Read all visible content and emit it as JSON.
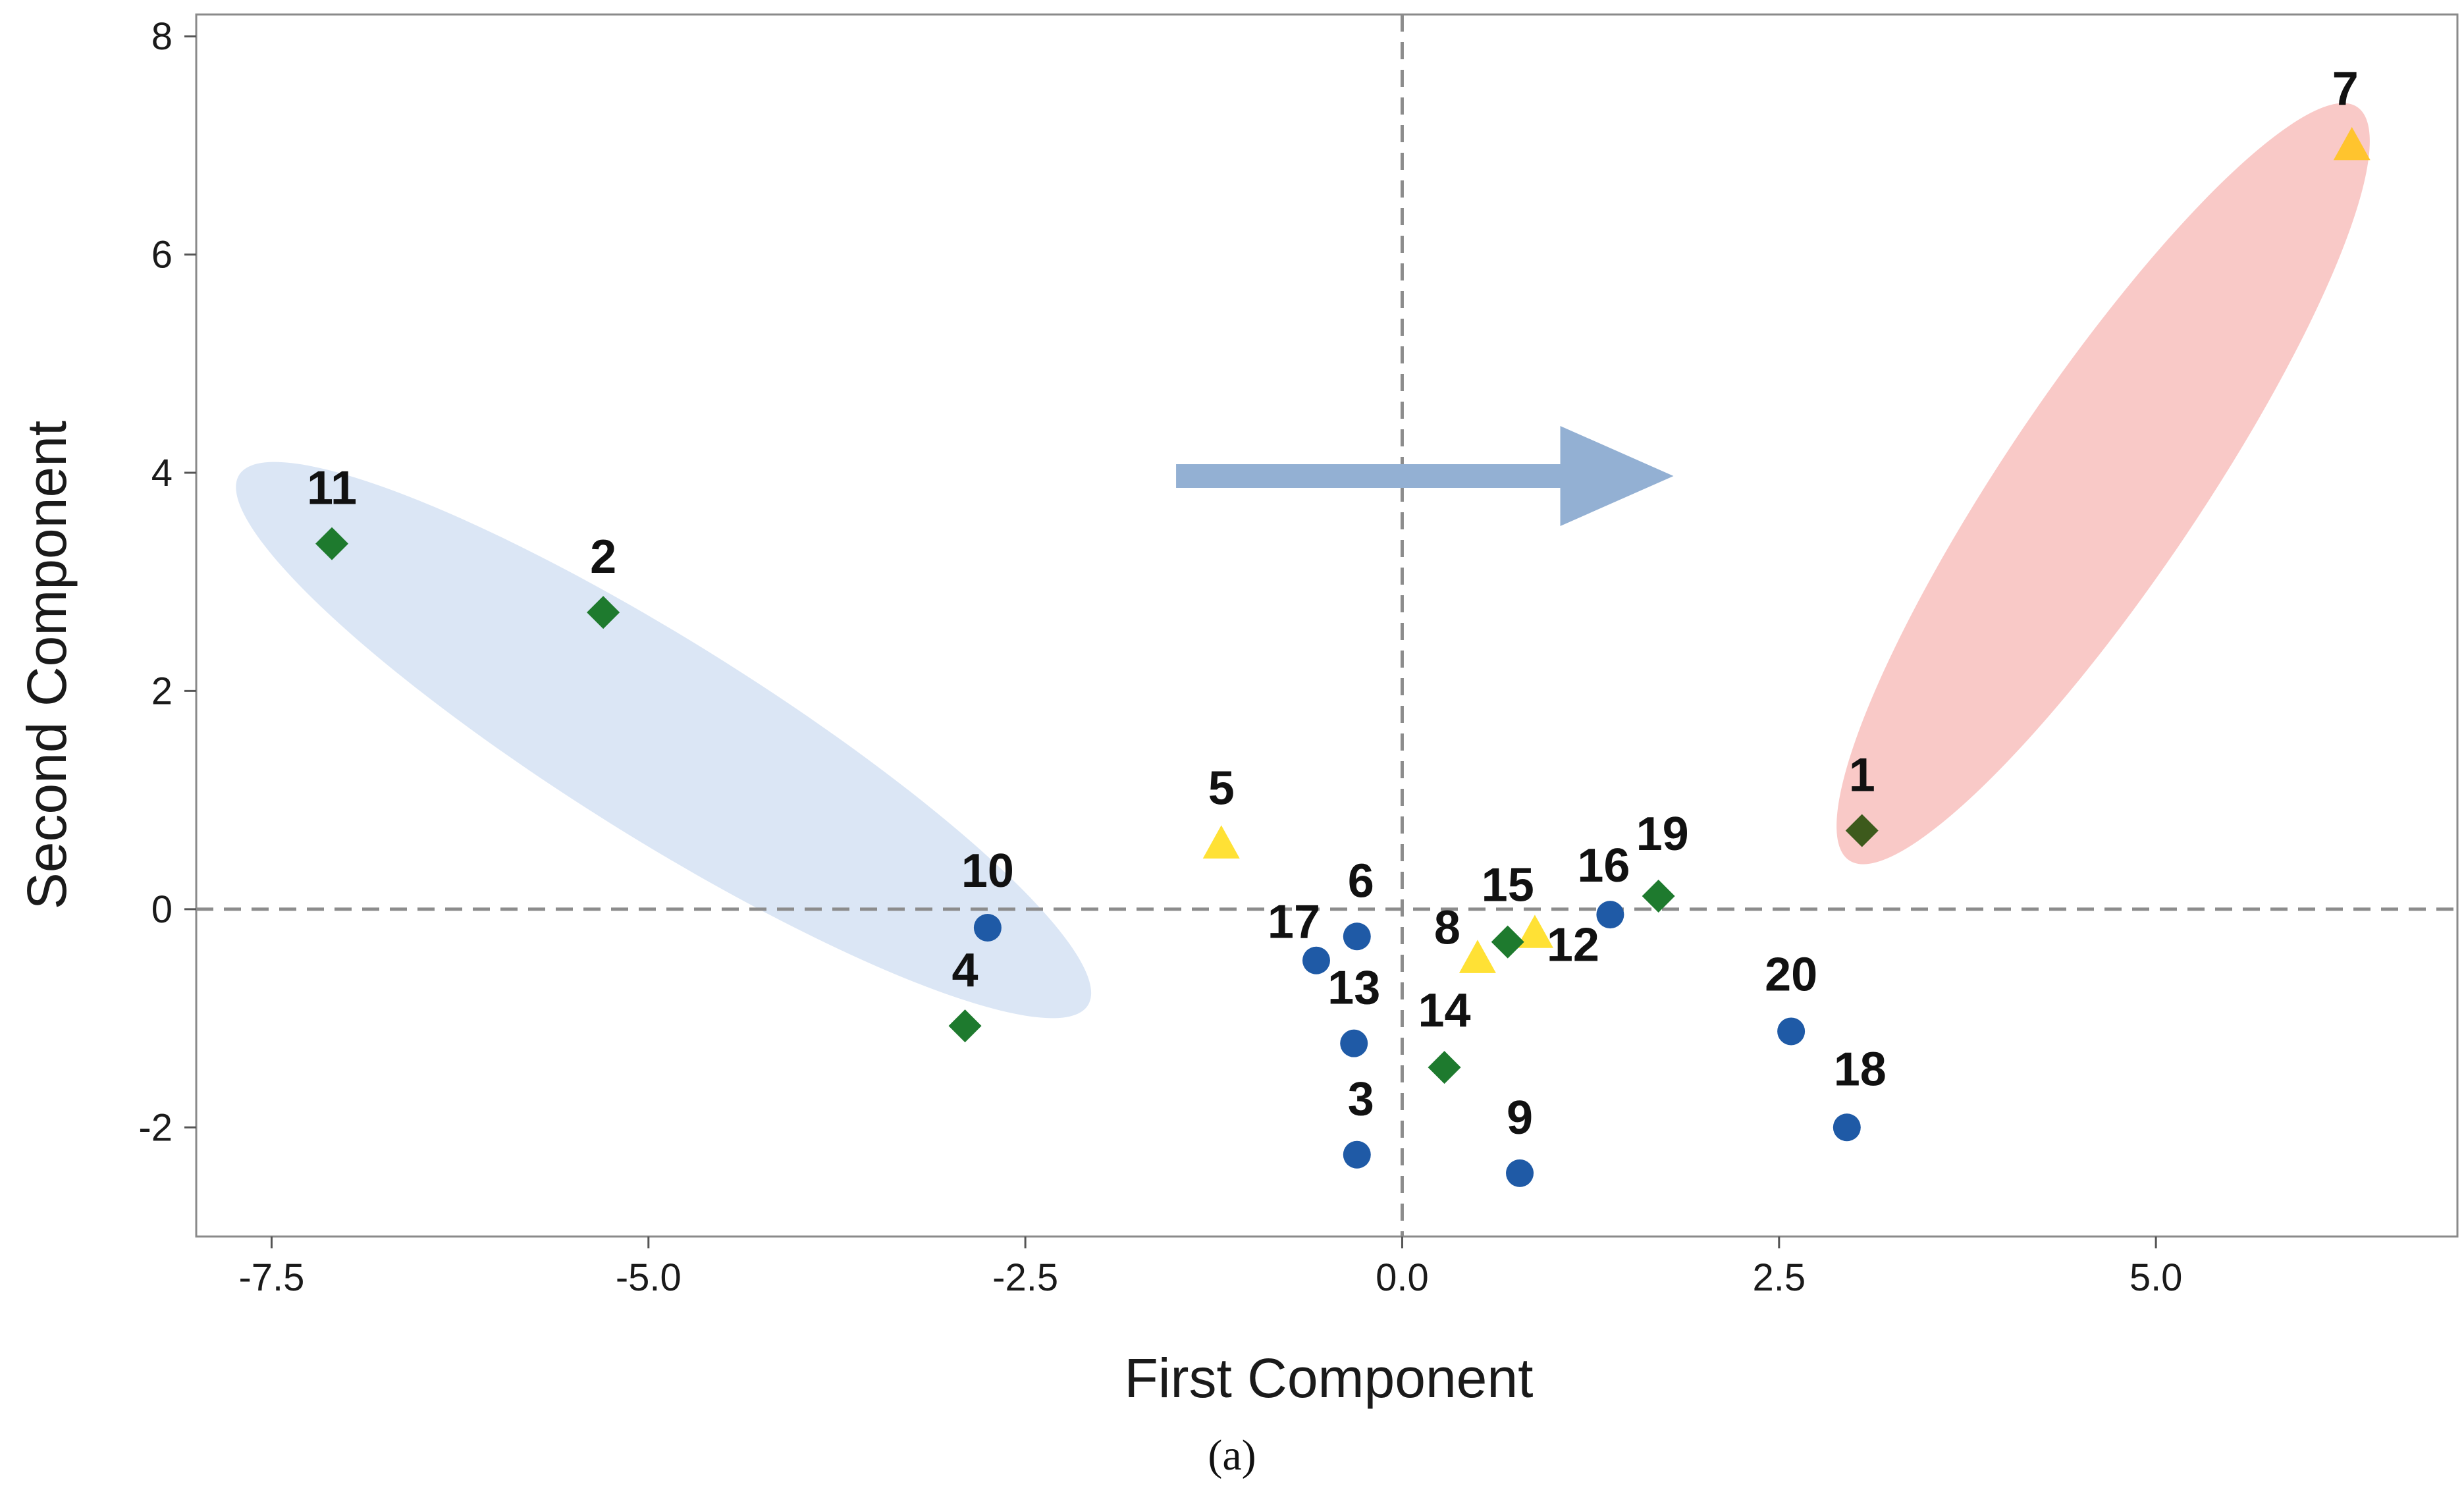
{
  "chart_data": {
    "type": "scatter",
    "title": "",
    "xlabel": "First Component",
    "ylabel": "Second Component",
    "caption": "(a)",
    "xlim": [
      -8.0,
      7.0
    ],
    "ylim": [
      -3.0,
      8.2
    ],
    "x_ticks": [
      -7.5,
      -5.0,
      -2.5,
      0.0,
      2.5,
      5.0
    ],
    "x_tick_labels": [
      "-7.5",
      "-5.0",
      "-2.5",
      "0.0",
      "2.5",
      "5.0"
    ],
    "y_ticks": [
      -2,
      0,
      2,
      4,
      6,
      8
    ],
    "y_tick_labels": [
      "-2",
      "0",
      "2",
      "4",
      "6",
      "8"
    ],
    "reference_lines": {
      "x": 0,
      "y": 0,
      "style": "dashed"
    },
    "colors": {
      "circle": "#1f5aa6",
      "diamond": "#1e7a2e",
      "diamond_dark": "#3d5a1c",
      "triangle": "#ffe135",
      "triangle_orange": "#ffc42e",
      "left_ellipse": "#dbe6f5",
      "right_ellipse": "#f9c9c7",
      "arrow": "#93b0d3",
      "reference_line": "#8c8c8c"
    },
    "points": [
      {
        "label": "1",
        "x": 3.05,
        "y": 0.72,
        "shape": "diamond",
        "color": "#3d5a1c"
      },
      {
        "label": "2",
        "x": -5.3,
        "y": 2.72,
        "shape": "diamond",
        "color": "#1e7a2e"
      },
      {
        "label": "3",
        "x": -0.3,
        "y": -2.25,
        "shape": "circle",
        "color": "#1f5aa6"
      },
      {
        "label": "4",
        "x": -2.9,
        "y": -1.07,
        "shape": "diamond",
        "color": "#1e7a2e"
      },
      {
        "label": "5",
        "x": -1.2,
        "y": 0.6,
        "shape": "triangle",
        "color": "#ffe135"
      },
      {
        "label": "6",
        "x": -0.3,
        "y": -0.25,
        "shape": "circle",
        "color": "#1f5aa6"
      },
      {
        "label": "7",
        "x": 6.3,
        "y": 7.0,
        "shape": "triangle",
        "color": "#ffc42e"
      },
      {
        "label": "8",
        "x": 0.5,
        "y": -0.45,
        "shape": "triangle",
        "color": "#ffe135"
      },
      {
        "label": "9",
        "x": 0.78,
        "y": -2.42,
        "shape": "circle",
        "color": "#1f5aa6"
      },
      {
        "label": "10",
        "x": -2.75,
        "y": -0.17,
        "shape": "circle",
        "color": "#1f5aa6"
      },
      {
        "label": "11",
        "x": -7.1,
        "y": 3.35,
        "shape": "diamond",
        "color": "#1e7a2e"
      },
      {
        "label": "12",
        "x": 0.88,
        "y": -0.22,
        "shape": "triangle",
        "color": "#ffe135"
      },
      {
        "label": "13",
        "x": -0.32,
        "y": -1.23,
        "shape": "circle",
        "color": "#1f5aa6"
      },
      {
        "label": "14",
        "x": 0.28,
        "y": -1.45,
        "shape": "diamond",
        "color": "#1e7a2e"
      },
      {
        "label": "15",
        "x": 0.7,
        "y": -0.3,
        "shape": "diamond",
        "color": "#1e7a2e"
      },
      {
        "label": "16",
        "x": 1.38,
        "y": -0.05,
        "shape": "circle",
        "color": "#1f5aa6"
      },
      {
        "label": "17",
        "x": -0.57,
        "y": -0.47,
        "shape": "circle",
        "color": "#1f5aa6"
      },
      {
        "label": "18",
        "x": 2.95,
        "y": -2.0,
        "shape": "circle",
        "color": "#1f5aa6"
      },
      {
        "label": "19",
        "x": 1.7,
        "y": 0.12,
        "shape": "diamond",
        "color": "#1e7a2e"
      },
      {
        "label": "20",
        "x": 2.58,
        "y": -1.12,
        "shape": "circle",
        "color": "#1f5aa6"
      }
    ],
    "annotations": {
      "left_group": {
        "members": [
          "11",
          "2",
          "10"
        ],
        "center": [
          -4.9,
          1.55
        ],
        "color": "#dbe6f5"
      },
      "right_group": {
        "members": [
          "1",
          "7"
        ],
        "center": [
          4.65,
          3.9
        ],
        "color": "#f9c9c7"
      },
      "arrow": {
        "from": [
          -1.5,
          3.97
        ],
        "to": [
          1.8,
          3.97
        ],
        "color": "#93b0d3"
      }
    }
  }
}
